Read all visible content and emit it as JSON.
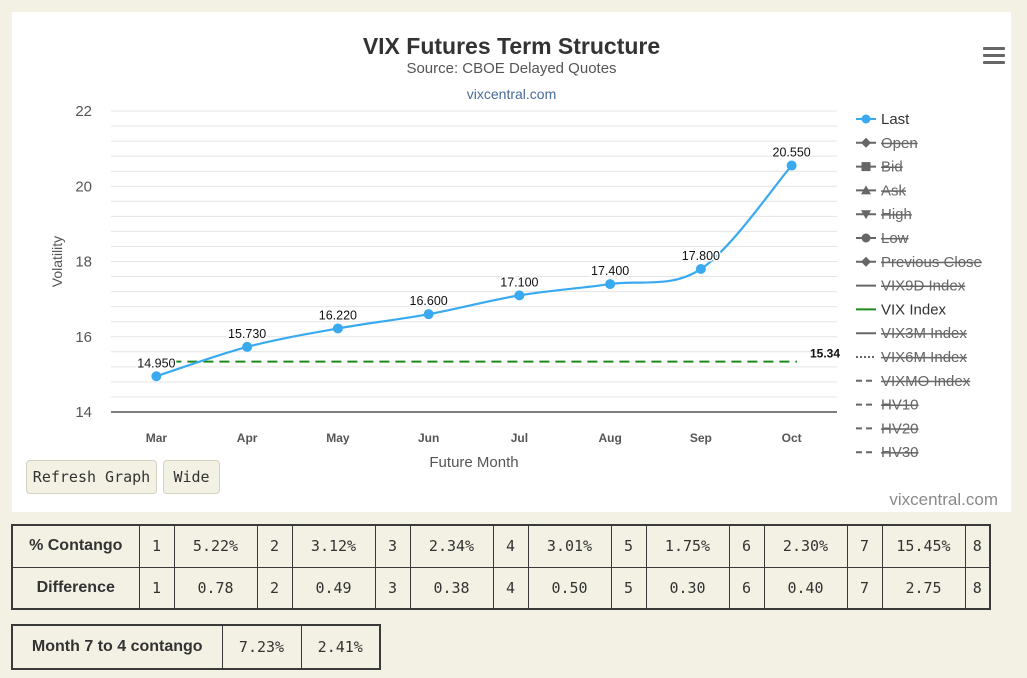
{
  "chart_data": {
    "type": "line",
    "title": "VIX Futures Term Structure",
    "subtitle": "Source: CBOE Delayed Quotes",
    "credit_top": "vixcentral.com",
    "credit_bottom": "vixcentral.com",
    "xlabel": "Future Month",
    "ylabel": "Volatility",
    "categories": [
      "Mar",
      "Apr",
      "May",
      "Jun",
      "Jul",
      "Aug",
      "Sep",
      "Oct"
    ],
    "ylim": [
      14,
      22
    ],
    "yticks": [
      14,
      16,
      18,
      20,
      22
    ],
    "grid": true,
    "legend_position": "right",
    "series": [
      {
        "name": "Last",
        "values": [
          14.95,
          15.73,
          16.22,
          16.6,
          17.1,
          17.4,
          17.8,
          20.55
        ],
        "labels": [
          "14.950",
          "15.730",
          "16.220",
          "16.600",
          "17.100",
          "17.400",
          "17.800",
          "20.550"
        ],
        "color": "#3aaaf0",
        "style": "solid",
        "marker": "circle"
      },
      {
        "name": "VIX Index",
        "value": 15.34,
        "label": "15.34",
        "color": "#1e8a1e",
        "style": "dashed"
      }
    ],
    "legend": [
      {
        "name": "Last",
        "enabled": true,
        "symbol": "circle",
        "line": "solid",
        "color": "#3aaaf0"
      },
      {
        "name": "Open",
        "enabled": false,
        "symbol": "diamond",
        "line": "solid",
        "color": "#666666"
      },
      {
        "name": "Bid",
        "enabled": false,
        "symbol": "square",
        "line": "solid",
        "color": "#666666"
      },
      {
        "name": "Ask",
        "enabled": false,
        "symbol": "triangle",
        "line": "solid",
        "color": "#666666"
      },
      {
        "name": "High",
        "enabled": false,
        "symbol": "triangle-down",
        "line": "solid",
        "color": "#666666"
      },
      {
        "name": "Low",
        "enabled": false,
        "symbol": "circle",
        "line": "solid",
        "color": "#666666"
      },
      {
        "name": "Previous Close",
        "enabled": false,
        "symbol": "diamond",
        "line": "solid",
        "color": "#666666"
      },
      {
        "name": "VIX9D Index",
        "enabled": false,
        "symbol": "none",
        "line": "solid",
        "color": "#666666"
      },
      {
        "name": "VIX Index",
        "enabled": true,
        "symbol": "none",
        "line": "solid",
        "color": "#1e8a1e"
      },
      {
        "name": "VIX3M Index",
        "enabled": false,
        "symbol": "none",
        "line": "solid",
        "color": "#666666"
      },
      {
        "name": "VIX6M Index",
        "enabled": false,
        "symbol": "none",
        "line": "dotted",
        "color": "#666666"
      },
      {
        "name": "VIXMO Index",
        "enabled": false,
        "symbol": "none",
        "line": "dashed",
        "color": "#666666"
      },
      {
        "name": "HV10",
        "enabled": false,
        "symbol": "none",
        "line": "dashed",
        "color": "#666666"
      },
      {
        "name": "HV20",
        "enabled": false,
        "symbol": "none",
        "line": "dashed",
        "color": "#666666"
      },
      {
        "name": "HV30",
        "enabled": false,
        "symbol": "none",
        "line": "dashed",
        "color": "#666666"
      }
    ]
  },
  "buttons": {
    "refresh": "Refresh Graph",
    "wide": "Wide"
  },
  "contango_table": {
    "rows": [
      {
        "label": "% Contango",
        "cells": [
          "1",
          "5.22%",
          "2",
          "3.12%",
          "3",
          "2.34%",
          "4",
          "3.01%",
          "5",
          "1.75%",
          "6",
          "2.30%",
          "7",
          "15.45%",
          "8"
        ]
      },
      {
        "label": "Difference",
        "cells": [
          "1",
          "0.78",
          "2",
          "0.49",
          "3",
          "0.38",
          "4",
          "0.50",
          "5",
          "0.30",
          "6",
          "0.40",
          "7",
          "2.75",
          "8"
        ]
      }
    ]
  },
  "month_7_4": {
    "label": "Month 7 to 4 contango",
    "values": [
      "7.23%",
      "2.41%"
    ]
  }
}
